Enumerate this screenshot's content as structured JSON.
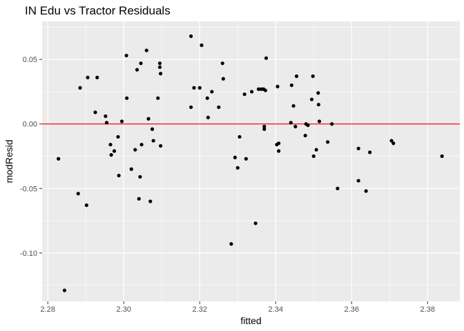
{
  "chart_data": {
    "type": "scatter",
    "title": "IN Edu vs Tractor Residuals",
    "xlabel": "fitted",
    "ylabel": "modResid",
    "xlim": [
      2.2785,
      2.3885
    ],
    "ylim": [
      -0.1375,
      0.0795
    ],
    "x_ticks": [
      2.28,
      2.3,
      2.32,
      2.34,
      2.36,
      2.38
    ],
    "x_tick_labels": [
      "2.28",
      "2.30",
      "2.32",
      "2.34",
      "2.36",
      "2.38"
    ],
    "y_ticks": [
      -0.1,
      -0.05,
      0.0,
      0.05
    ],
    "y_tick_labels": [
      "-0.10",
      "-0.05",
      "0.00",
      "0.05"
    ],
    "grid": true,
    "reference_line": {
      "y": 0.0,
      "color": "#ff0000"
    },
    "colors": {
      "panel": "#ebebeb",
      "grid": "#ffffff",
      "point": "#000000"
    },
    "points": [
      [
        2.2828,
        -0.027
      ],
      [
        2.2844,
        -0.129
      ],
      [
        2.288,
        -0.054
      ],
      [
        2.2885,
        0.028
      ],
      [
        2.2902,
        -0.063
      ],
      [
        2.2905,
        0.036
      ],
      [
        2.2925,
        0.009
      ],
      [
        2.293,
        0.036
      ],
      [
        2.2952,
        0.006
      ],
      [
        2.2955,
        0.001
      ],
      [
        2.2965,
        -0.016
      ],
      [
        2.2967,
        -0.024
      ],
      [
        2.2975,
        -0.021
      ],
      [
        2.2985,
        -0.01
      ],
      [
        2.2987,
        -0.04
      ],
      [
        2.2995,
        0.002
      ],
      [
        2.3007,
        0.053
      ],
      [
        2.3008,
        0.02
      ],
      [
        2.302,
        -0.035
      ],
      [
        2.303,
        -0.02
      ],
      [
        2.3035,
        0.042
      ],
      [
        2.304,
        -0.058
      ],
      [
        2.3043,
        -0.041
      ],
      [
        2.3045,
        0.047
      ],
      [
        2.3047,
        -0.016
      ],
      [
        2.306,
        0.057
      ],
      [
        2.3065,
        0.004
      ],
      [
        2.307,
        -0.06
      ],
      [
        2.3075,
        -0.004
      ],
      [
        2.3078,
        -0.013
      ],
      [
        2.309,
        0.02
      ],
      [
        2.3095,
        0.047
      ],
      [
        2.3095,
        0.044
      ],
      [
        2.3097,
        0.039
      ],
      [
        2.3097,
        -0.017
      ],
      [
        2.3177,
        0.068
      ],
      [
        2.3177,
        0.013
      ],
      [
        2.3185,
        0.028
      ],
      [
        2.32,
        0.028
      ],
      [
        2.3205,
        0.061
      ],
      [
        2.322,
        0.02
      ],
      [
        2.3222,
        0.005
      ],
      [
        2.3232,
        0.025
      ],
      [
        2.325,
        0.013
      ],
      [
        2.326,
        0.047
      ],
      [
        2.3262,
        0.035
      ],
      [
        2.3283,
        -0.093
      ],
      [
        2.3293,
        -0.026
      ],
      [
        2.33,
        -0.034
      ],
      [
        2.3305,
        -0.01
      ],
      [
        2.3318,
        0.023
      ],
      [
        2.3322,
        -0.027
      ],
      [
        2.3337,
        0.025
      ],
      [
        2.3347,
        -0.077
      ],
      [
        2.3355,
        0.027
      ],
      [
        2.3362,
        0.027
      ],
      [
        2.3368,
        0.027
      ],
      [
        2.337,
        -0.002
      ],
      [
        2.337,
        -0.004
      ],
      [
        2.3373,
        0.026
      ],
      [
        2.3375,
        0.051
      ],
      [
        2.3403,
        -0.016
      ],
      [
        2.3405,
        0.029
      ],
      [
        2.3408,
        -0.015
      ],
      [
        2.3408,
        -0.021
      ],
      [
        2.344,
        0.001
      ],
      [
        2.3442,
        0.03
      ],
      [
        2.3447,
        0.014
      ],
      [
        2.3452,
        -0.002
      ],
      [
        2.3455,
        0.037
      ],
      [
        2.3478,
        -0.009
      ],
      [
        2.348,
        0.0
      ],
      [
        2.3485,
        -0.001
      ],
      [
        2.3495,
        0.019
      ],
      [
        2.3498,
        0.037
      ],
      [
        2.35,
        -0.025
      ],
      [
        2.3507,
        -0.02
      ],
      [
        2.3512,
        0.024
      ],
      [
        2.3513,
        0.015
      ],
      [
        2.3515,
        0.002
      ],
      [
        2.3537,
        -0.014
      ],
      [
        2.3548,
        0.0
      ],
      [
        2.3563,
        -0.05
      ],
      [
        2.3618,
        -0.019
      ],
      [
        2.3618,
        -0.044
      ],
      [
        2.3638,
        -0.052
      ],
      [
        2.3648,
        -0.022
      ],
      [
        2.3705,
        -0.013
      ],
      [
        2.371,
        -0.015
      ],
      [
        2.3838,
        -0.025
      ]
    ]
  }
}
